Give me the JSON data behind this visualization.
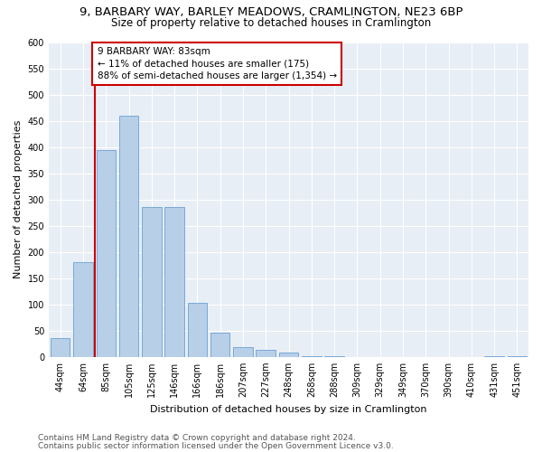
{
  "title_line1": "9, BARBARY WAY, BARLEY MEADOWS, CRAMLINGTON, NE23 6BP",
  "title_line2": "Size of property relative to detached houses in Cramlington",
  "xlabel": "Distribution of detached houses by size in Cramlington",
  "ylabel": "Number of detached properties",
  "bar_labels": [
    "44sqm",
    "64sqm",
    "85sqm",
    "105sqm",
    "125sqm",
    "146sqm",
    "166sqm",
    "186sqm",
    "207sqm",
    "227sqm",
    "248sqm",
    "268sqm",
    "288sqm",
    "309sqm",
    "329sqm",
    "349sqm",
    "370sqm",
    "390sqm",
    "410sqm",
    "431sqm",
    "451sqm"
  ],
  "bar_values": [
    36,
    180,
    395,
    460,
    285,
    285,
    103,
    47,
    18,
    13,
    8,
    2,
    1,
    0,
    0,
    0,
    0,
    0,
    0,
    1,
    1
  ],
  "bar_color": "#b8cfe8",
  "bar_edge_color": "#6a9fd4",
  "highlight_color": "#cc0000",
  "annotation_text": "9 BARBARY WAY: 83sqm\n← 11% of detached houses are smaller (175)\n88% of semi-detached houses are larger (1,354) →",
  "annotation_box_color": "#cc0000",
  "bg_color": "#e8eef5",
  "ylim": [
    0,
    600
  ],
  "yticks": [
    0,
    50,
    100,
    150,
    200,
    250,
    300,
    350,
    400,
    450,
    500,
    550,
    600
  ],
  "footer_line1": "Contains HM Land Registry data © Crown copyright and database right 2024.",
  "footer_line2": "Contains public sector information licensed under the Open Government Licence v3.0.",
  "title_fontsize": 9.5,
  "subtitle_fontsize": 8.5,
  "axis_label_fontsize": 8,
  "tick_fontsize": 7,
  "annotation_fontsize": 7.5,
  "footer_fontsize": 6.5
}
